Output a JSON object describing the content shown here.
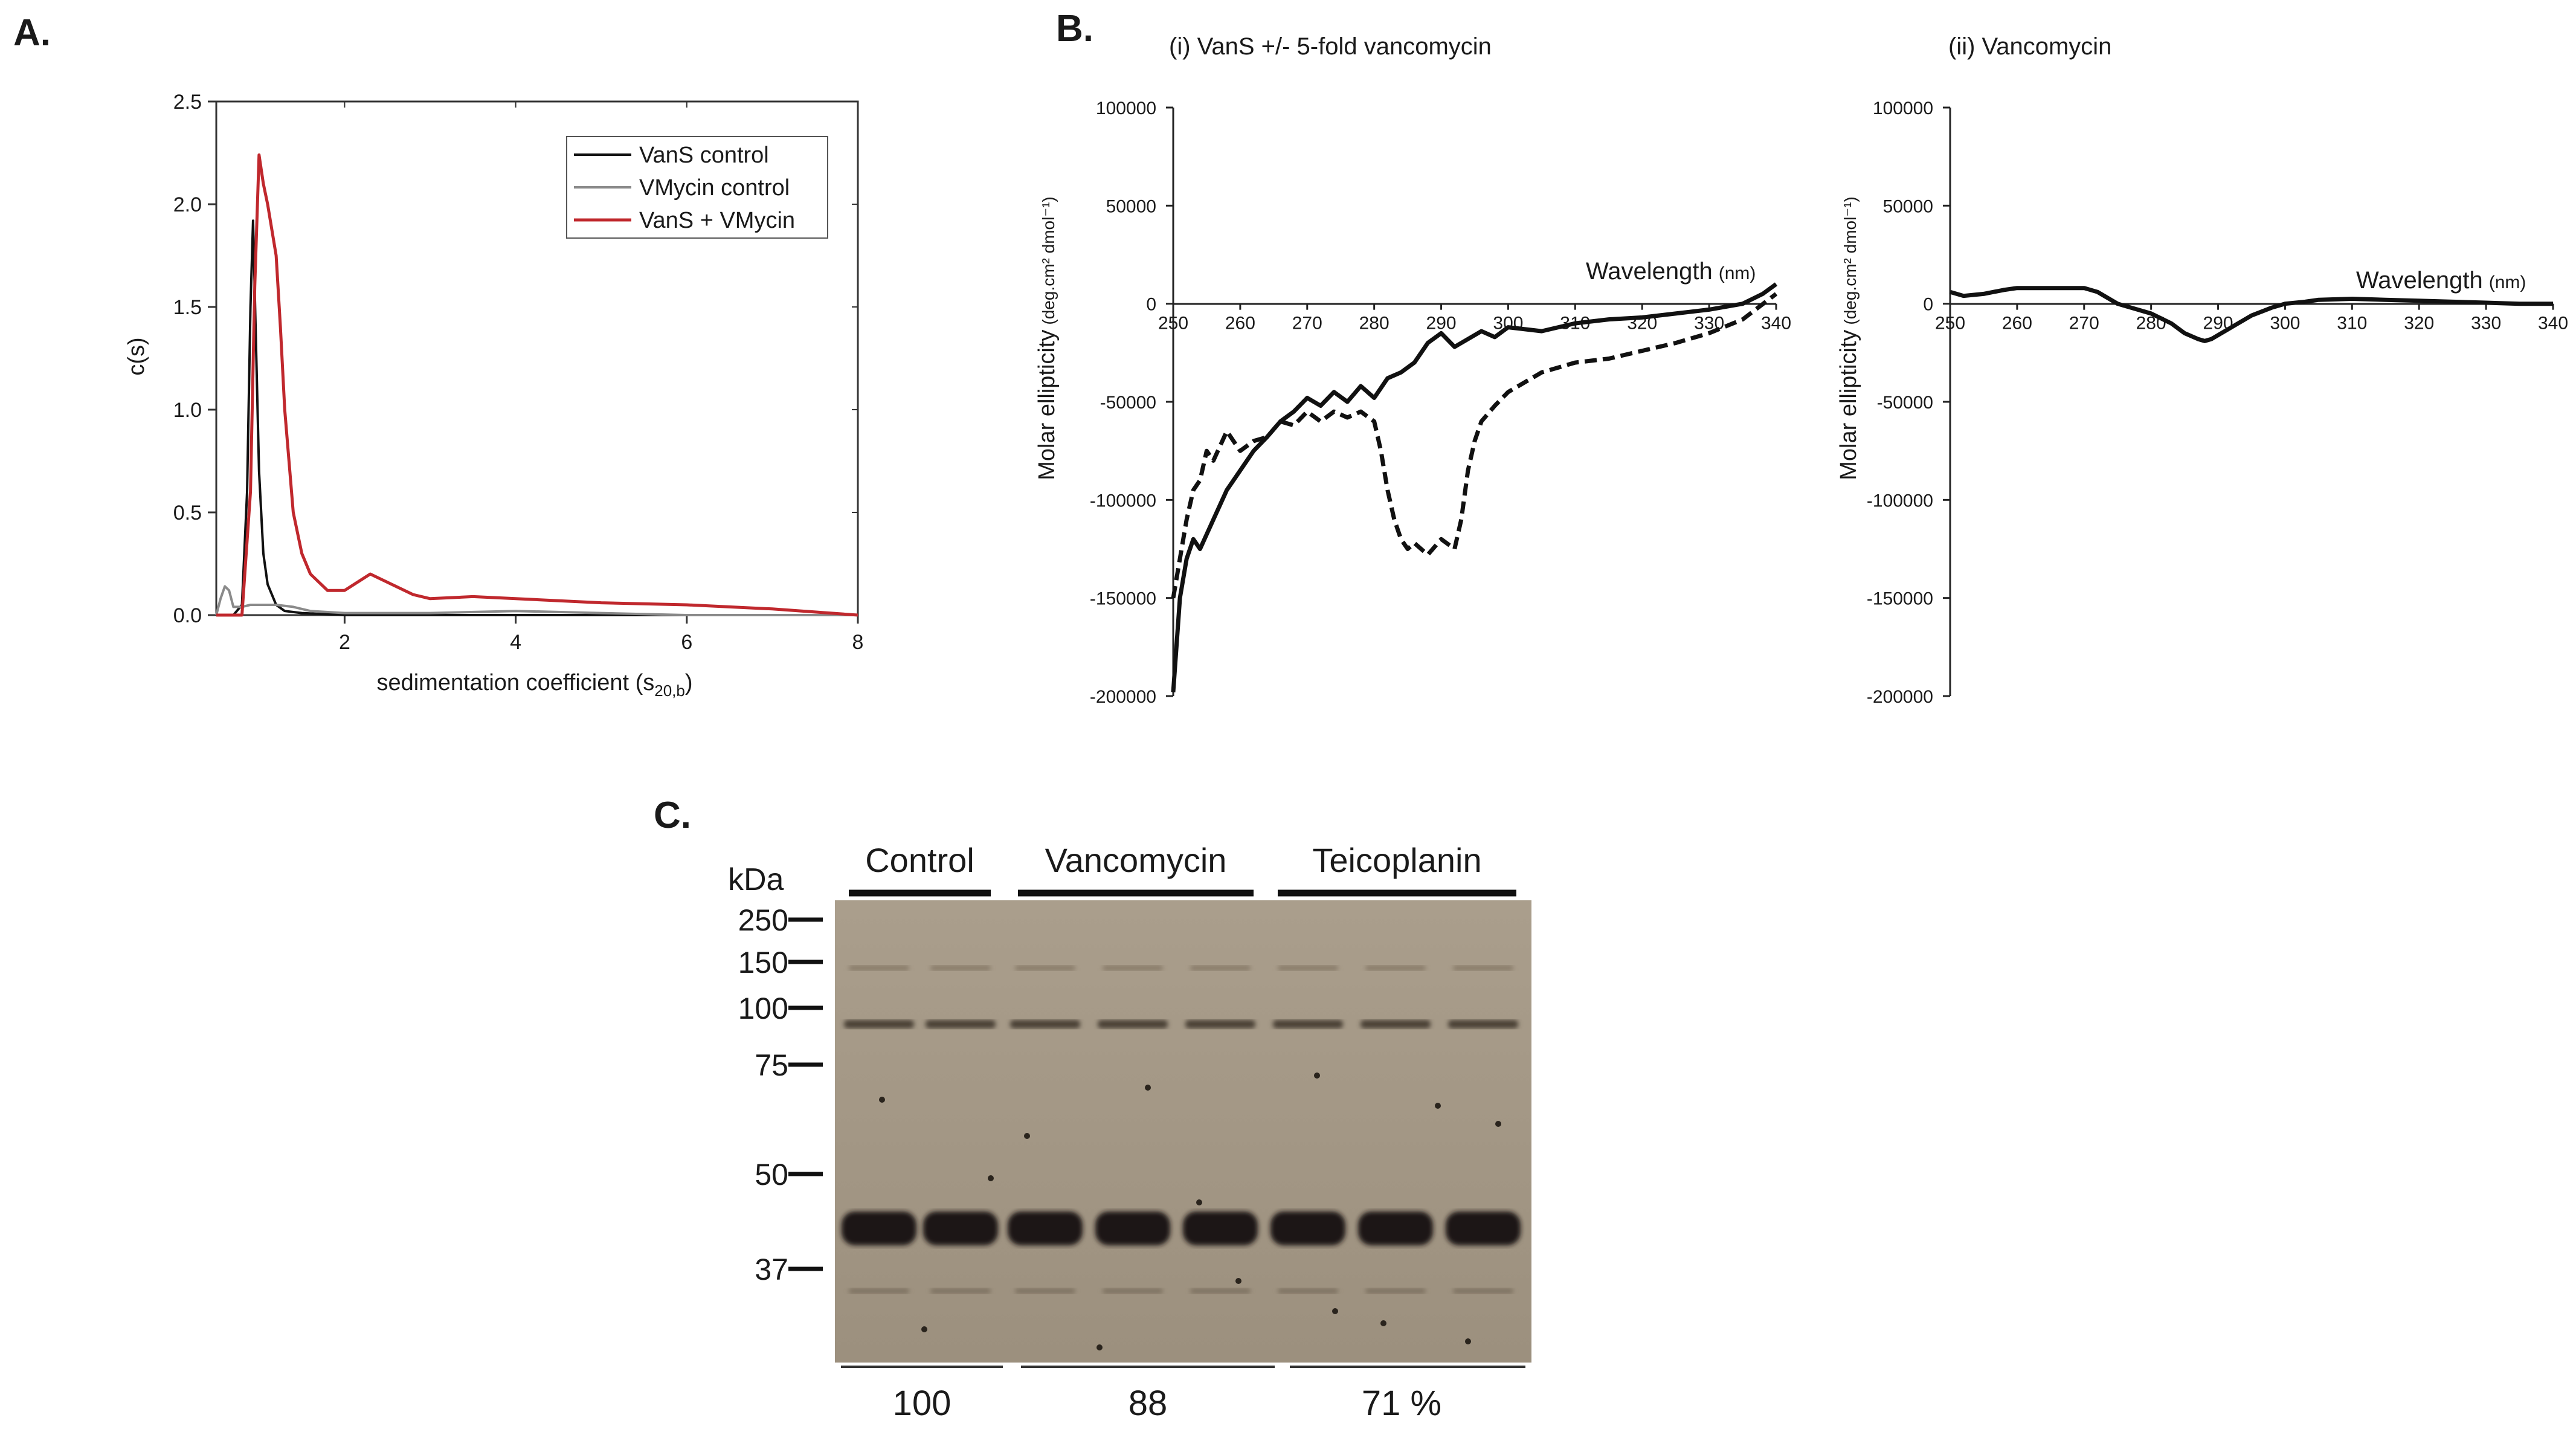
{
  "panels": {
    "a_label": "A.",
    "b_label": "B.",
    "c_label": "C."
  },
  "chart_data": [
    {
      "id": "A",
      "type": "line",
      "title": "",
      "xlabel": "sedimentation coefficient (s",
      "xlabel_sub": "20,b",
      "xlabel_end": ")",
      "ylabel": "c(s)",
      "xlim": [
        0.5,
        8
      ],
      "ylim": [
        0,
        2.5
      ],
      "xticks": [
        2,
        4,
        6,
        8
      ],
      "yticks": [
        0.0,
        0.5,
        1.0,
        1.5,
        2.0,
        2.5
      ],
      "legend_position": "top-right",
      "series": [
        {
          "name": "VanS control",
          "color": "#111111",
          "x": [
            0.5,
            0.7,
            0.8,
            0.86,
            0.9,
            0.93,
            0.96,
            1.0,
            1.05,
            1.1,
            1.2,
            1.3,
            1.5,
            2.0,
            3.0,
            4.0,
            8.0
          ],
          "y": [
            0.0,
            0.0,
            0.05,
            0.6,
            1.5,
            1.92,
            1.4,
            0.7,
            0.3,
            0.15,
            0.05,
            0.02,
            0.01,
            0.0,
            0.0,
            0.0,
            0.0
          ]
        },
        {
          "name": "VMycin control",
          "color": "#8a8a8a",
          "x": [
            0.5,
            0.55,
            0.6,
            0.65,
            0.7,
            0.8,
            0.9,
            1.0,
            1.2,
            1.4,
            1.6,
            2.0,
            3.0,
            4.0,
            5.0,
            6.0,
            8.0
          ],
          "y": [
            0.0,
            0.08,
            0.14,
            0.12,
            0.04,
            0.04,
            0.05,
            0.05,
            0.05,
            0.04,
            0.02,
            0.01,
            0.01,
            0.02,
            0.01,
            0.0,
            0.0
          ]
        },
        {
          "name": "VanS + VMycin",
          "color": "#c0282d",
          "x": [
            0.5,
            0.8,
            0.9,
            0.95,
            1.0,
            1.05,
            1.1,
            1.2,
            1.25,
            1.3,
            1.4,
            1.5,
            1.6,
            1.8,
            2.0,
            2.15,
            2.3,
            2.5,
            2.8,
            3.0,
            3.5,
            4.0,
            5.0,
            6.0,
            7.0,
            8.0
          ],
          "y": [
            0.0,
            0.0,
            0.6,
            1.6,
            2.24,
            2.1,
            2.0,
            1.75,
            1.4,
            1.0,
            0.5,
            0.3,
            0.2,
            0.12,
            0.12,
            0.16,
            0.2,
            0.16,
            0.1,
            0.08,
            0.09,
            0.08,
            0.06,
            0.05,
            0.03,
            0.0
          ]
        }
      ]
    },
    {
      "id": "B-i",
      "type": "line",
      "title": "(i)  VanS +/- 5-fold vancomycin",
      "xlabel": "Wavelength",
      "xlabel_unit": "(nm)",
      "ylabel": "Molar ellipticity",
      "ylabel_unit": "(deg.cm² dmol⁻¹)",
      "xlim": [
        250,
        340
      ],
      "ylim": [
        -200000,
        100000
      ],
      "xticks": [
        250,
        260,
        270,
        280,
        290,
        300,
        310,
        320,
        330,
        340
      ],
      "yticks": [
        100000,
        50000,
        0,
        -50000,
        -100000,
        -150000,
        -200000
      ],
      "series": [
        {
          "name": "VanS",
          "style": "solid",
          "x": [
            250,
            251,
            252,
            253,
            254,
            256,
            258,
            260,
            262,
            264,
            266,
            268,
            270,
            272,
            274,
            276,
            278,
            280,
            282,
            284,
            286,
            288,
            290,
            292,
            294,
            296,
            298,
            300,
            305,
            310,
            315,
            320,
            325,
            330,
            335,
            338,
            340
          ],
          "y": [
            -198000,
            -150000,
            -130000,
            -120000,
            -125000,
            -110000,
            -95000,
            -85000,
            -75000,
            -68000,
            -60000,
            -55000,
            -48000,
            -52000,
            -45000,
            -50000,
            -42000,
            -48000,
            -38000,
            -35000,
            -30000,
            -20000,
            -15000,
            -22000,
            -18000,
            -14000,
            -17000,
            -12000,
            -14000,
            -10000,
            -8000,
            -7000,
            -5000,
            -3000,
            0,
            5000,
            10000
          ]
        },
        {
          "name": "VanS + 5-fold vancomycin",
          "style": "dashed",
          "x": [
            250,
            251,
            252,
            253,
            254,
            255,
            256,
            258,
            260,
            262,
            264,
            266,
            268,
            270,
            272,
            274,
            276,
            278,
            280,
            281,
            282,
            283,
            284,
            285,
            286,
            288,
            290,
            292,
            293,
            294,
            295,
            296,
            298,
            300,
            305,
            310,
            315,
            320,
            325,
            330,
            335,
            340
          ],
          "y": [
            -150000,
            -130000,
            -110000,
            -95000,
            -90000,
            -75000,
            -80000,
            -65000,
            -75000,
            -70000,
            -68000,
            -60000,
            -62000,
            -55000,
            -60000,
            -55000,
            -58000,
            -55000,
            -60000,
            -75000,
            -95000,
            -110000,
            -120000,
            -125000,
            -122000,
            -128000,
            -120000,
            -125000,
            -110000,
            -85000,
            -70000,
            -60000,
            -52000,
            -45000,
            -35000,
            -30000,
            -28000,
            -24000,
            -20000,
            -15000,
            -8000,
            5000
          ]
        }
      ]
    },
    {
      "id": "B-ii",
      "type": "line",
      "title": "(ii)  Vancomycin",
      "xlabel": "Wavelength",
      "xlabel_unit": "(nm)",
      "ylabel": "Molar ellipticity",
      "ylabel_unit": "(deg.cm² dmol⁻¹)",
      "xlim": [
        250,
        340
      ],
      "ylim": [
        -200000,
        100000
      ],
      "xticks": [
        250,
        260,
        270,
        280,
        290,
        300,
        310,
        320,
        330,
        340
      ],
      "yticks": [
        100000,
        50000,
        0,
        -50000,
        -100000,
        -150000,
        -200000
      ],
      "series": [
        {
          "name": "Vancomycin",
          "style": "solid",
          "x": [
            250,
            252,
            255,
            258,
            260,
            265,
            270,
            272,
            275,
            278,
            280,
            283,
            285,
            287,
            288,
            289,
            290,
            292,
            295,
            298,
            300,
            303,
            305,
            310,
            315,
            320,
            325,
            330,
            335,
            340
          ],
          "y": [
            6000,
            4000,
            5000,
            7000,
            8000,
            8000,
            8000,
            6000,
            0,
            -3000,
            -5000,
            -10000,
            -15000,
            -18000,
            -19000,
            -18000,
            -16000,
            -12000,
            -6000,
            -2000,
            0,
            1000,
            2000,
            2500,
            2000,
            1500,
            1000,
            500,
            0,
            0
          ]
        }
      ]
    }
  ],
  "gel": {
    "unit_label": "kDa",
    "markers": [
      "250",
      "150",
      "100",
      "75",
      "50",
      "37"
    ],
    "groups": [
      {
        "label": "Control",
        "lanes": 2
      },
      {
        "label": "Vancomycin",
        "lanes": 3
      },
      {
        "label": "Teicoplanin",
        "lanes": 3
      }
    ],
    "quantification": [
      "100",
      "88",
      "71 %"
    ]
  }
}
